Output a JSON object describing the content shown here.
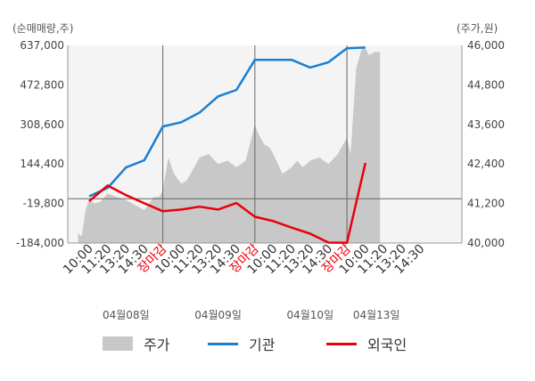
{
  "chart_data": {
    "type": "line",
    "left_axis_unit": "(순매매량,주)",
    "right_axis_unit": "(주가,원)",
    "y_left": {
      "ticks": [
        "637,000",
        "472,800",
        "308,600",
        "144,400",
        "-19,800",
        "-184,000"
      ],
      "min": -184000,
      "max": 637000
    },
    "y_right": {
      "ticks": [
        "46,000",
        "44,800",
        "43,600",
        "42,400",
        "41,200",
        "40,000"
      ],
      "min": 40000,
      "max": 46000
    },
    "x_tick_labels": [
      {
        "slot": 0,
        "text": "10:00",
        "color": "#333333"
      },
      {
        "slot": 1,
        "text": "11:20",
        "color": "#333333"
      },
      {
        "slot": 2,
        "text": "13:20",
        "color": "#333333"
      },
      {
        "slot": 3,
        "text": "14:30",
        "color": "#333333"
      },
      {
        "slot": 4,
        "text": "장마감",
        "color": "#e8000b"
      },
      {
        "slot": 5,
        "text": "10:00",
        "color": "#333333"
      },
      {
        "slot": 6,
        "text": "11:20",
        "color": "#333333"
      },
      {
        "slot": 7,
        "text": "13:20",
        "color": "#333333"
      },
      {
        "slot": 8,
        "text": "14:30",
        "color": "#333333"
      },
      {
        "slot": 9,
        "text": "장마감",
        "color": "#e8000b"
      },
      {
        "slot": 10,
        "text": "10:00",
        "color": "#333333"
      },
      {
        "slot": 11,
        "text": "11:20",
        "color": "#333333"
      },
      {
        "slot": 12,
        "text": "13:20",
        "color": "#333333"
      },
      {
        "slot": 13,
        "text": "14:30",
        "color": "#333333"
      },
      {
        "slot": 14,
        "text": "장마감",
        "color": "#e8000b"
      },
      {
        "slot": 15,
        "text": "10:00",
        "color": "#333333"
      },
      {
        "slot": 16,
        "text": "11:20",
        "color": "#333333"
      },
      {
        "slot": 17,
        "text": "13:20",
        "color": "#333333"
      },
      {
        "slot": 18,
        "text": "14:30",
        "color": "#333333"
      }
    ],
    "day_labels": [
      {
        "slot": 2,
        "text": "04월08일"
      },
      {
        "slot": 7,
        "text": "04월09일"
      },
      {
        "slot": 12,
        "text": "04월10일"
      },
      {
        "slot": 15.6,
        "text": "04월13일"
      }
    ],
    "day_separators": [
      4,
      9,
      14
    ],
    "zero_line_value": 0,
    "series": [
      {
        "name": "기관",
        "color": "#1a7fd0",
        "axis": "left",
        "x": [
          0,
          1,
          2,
          3,
          4,
          5,
          6,
          7,
          8,
          9,
          10,
          11,
          12,
          13,
          14,
          15
        ],
        "values": [
          10000,
          45000,
          130000,
          160000,
          300000,
          318000,
          358000,
          425000,
          452000,
          577000,
          577000,
          577000,
          545000,
          567000,
          625000,
          628000
        ]
      },
      {
        "name": "외국인",
        "color": "#e8000b",
        "axis": "left",
        "x": [
          0,
          1,
          2,
          3,
          4,
          5,
          6,
          7,
          8,
          9,
          10,
          11,
          12,
          13,
          14,
          15
        ],
        "values": [
          -10000,
          55000,
          15000,
          -19000,
          -52000,
          -45000,
          -33000,
          -45000,
          -18000,
          -75000,
          -93000,
          -120000,
          -145000,
          -182000,
          -183000,
          149000
        ]
      },
      {
        "name": "주가",
        "color": "#c8c8c8",
        "axis": "right",
        "type": "area",
        "x": [
          -0.6,
          -0.4,
          -0.2,
          0,
          0.3,
          0.6,
          1,
          1.5,
          2,
          2.5,
          3,
          3.5,
          3.8,
          4,
          4.3,
          4.6,
          5,
          5.3,
          5.6,
          6,
          6.5,
          7,
          7.5,
          8,
          8.5,
          9,
          9.2,
          9.5,
          9.8,
          10,
          10.5,
          11,
          11.3,
          11.6,
          12,
          12.5,
          13,
          13.5,
          14,
          14.2,
          14.5,
          14.8,
          15,
          15.2,
          15.5,
          15.8
        ],
        "values": [
          40300,
          40200,
          41000,
          41300,
          41200,
          41250,
          41500,
          41400,
          41300,
          41150,
          41000,
          41400,
          41400,
          41600,
          42600,
          42100,
          41800,
          41900,
          42200,
          42600,
          42700,
          42400,
          42500,
          42300,
          42500,
          43600,
          43300,
          43000,
          42900,
          42700,
          42100,
          42300,
          42500,
          42300,
          42500,
          42600,
          42400,
          42700,
          43200,
          42700,
          45300,
          45900,
          45900,
          45700,
          45800,
          45800
        ]
      }
    ]
  },
  "legend": [
    {
      "label": "주가",
      "color": "#c8c8c8",
      "kind": "area"
    },
    {
      "label": "기관",
      "color": "#1a7fd0",
      "kind": "line"
    },
    {
      "label": "외국인",
      "color": "#e8000b",
      "kind": "line"
    }
  ]
}
